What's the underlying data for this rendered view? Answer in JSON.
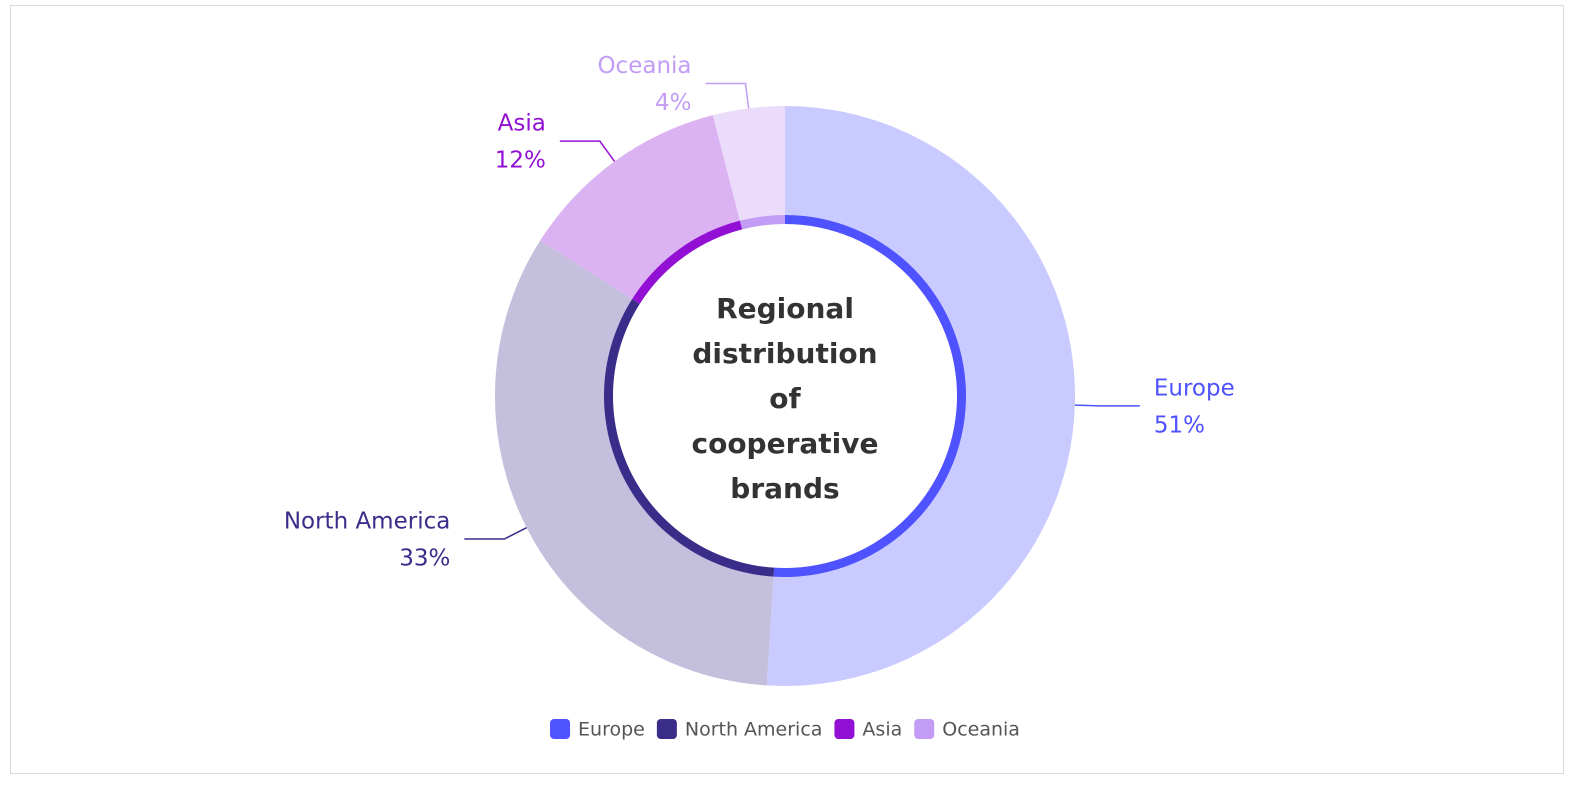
{
  "chart_data": {
    "type": "donut",
    "title": "Regional distribution of cooperative brands",
    "categories": [
      "Europe",
      "North America",
      "Asia",
      "Oceania"
    ],
    "values": [
      51,
      33,
      12,
      4
    ],
    "value_labels": [
      "51%",
      "33%",
      "12%",
      "4%"
    ],
    "colors": [
      "#4f52ff",
      "#3a2d8a",
      "#9210d4",
      "#c39cf5"
    ],
    "fill_colors": [
      "#c9caff",
      "#c3bfdd",
      "#dcb3f2",
      "#ebdcfb"
    ],
    "legend": "bottom"
  }
}
